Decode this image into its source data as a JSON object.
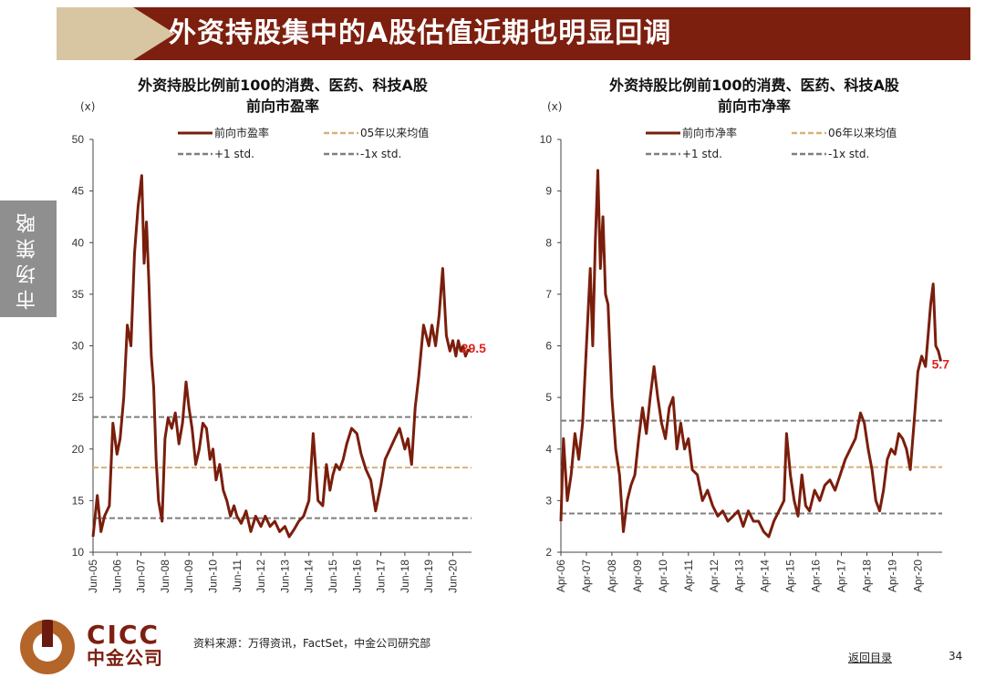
{
  "header": {
    "title": "外资持股集中的A股估值近期也明显回调"
  },
  "side_tab": {
    "label": "市场策略"
  },
  "footer": {
    "logo_en": "CICC",
    "logo_cn": "中金公司",
    "source": "资料来源：万得资讯，FactSet，中金公司研究部",
    "back_link": "返回目录",
    "page_number": "34"
  },
  "colors": {
    "banner": "#7d1f0f",
    "series": "#7a1e0c",
    "mean_line": "#d6b27a",
    "std_line": "#7f7f7f",
    "annotation": "#e0241b"
  },
  "chart_data": [
    {
      "type": "line",
      "title_line1": "外资持股比例前100的消费、医药、科技A股",
      "title_line2": "前向市盈率",
      "unit": "(x)",
      "ylim": [
        10,
        50
      ],
      "y_ticks": [
        "10",
        "15",
        "20",
        "25",
        "30",
        "35",
        "40",
        "45",
        "50"
      ],
      "x_ticks": [
        "Jun-05",
        "Jun-06",
        "Jun-07",
        "Jun-08",
        "Jun-09",
        "Jun-10",
        "Jun-11",
        "Jun-12",
        "Jun-13",
        "Jun-14",
        "Jun-15",
        "Jun-16",
        "Jun-17",
        "Jun-18",
        "Jun-19",
        "Jun-20"
      ],
      "x_range": [
        2005.42,
        2021.2
      ],
      "legend": [
        "前向市盈率",
        "05年以来均值",
        "+1 std.",
        "-1x std."
      ],
      "latest_label": "29.5",
      "latest_value": 29.5,
      "mean": 18.2,
      "plus_1_std": 23.1,
      "minus_1_std": 13.3,
      "series": [
        {
          "name": "前向市盈率",
          "x": [
            2005.42,
            2005.6,
            2005.75,
            2005.9,
            2006.1,
            2006.25,
            2006.42,
            2006.55,
            2006.7,
            2006.85,
            2007.0,
            2007.15,
            2007.3,
            2007.45,
            2007.55,
            2007.65,
            2007.75,
            2007.85,
            2007.95,
            2008.05,
            2008.15,
            2008.3,
            2008.42,
            2008.55,
            2008.7,
            2008.85,
            2009.0,
            2009.15,
            2009.3,
            2009.42,
            2009.55,
            2009.7,
            2009.85,
            2010.0,
            2010.15,
            2010.3,
            2010.42,
            2010.55,
            2010.7,
            2010.85,
            2011.0,
            2011.15,
            2011.3,
            2011.42,
            2011.6,
            2011.8,
            2012.0,
            2012.2,
            2012.42,
            2012.6,
            2012.8,
            2013.0,
            2013.2,
            2013.42,
            2013.6,
            2013.8,
            2014.0,
            2014.2,
            2014.42,
            2014.6,
            2014.8,
            2015.0,
            2015.15,
            2015.3,
            2015.42,
            2015.55,
            2015.7,
            2015.85,
            2016.0,
            2016.2,
            2016.42,
            2016.6,
            2016.8,
            2017.0,
            2017.2,
            2017.42,
            2017.6,
            2017.8,
            2018.0,
            2018.2,
            2018.42,
            2018.55,
            2018.7,
            2018.85,
            2019.0,
            2019.2,
            2019.42,
            2019.55,
            2019.7,
            2019.85,
            2020.0,
            2020.15,
            2020.3,
            2020.42,
            2020.55,
            2020.65,
            2020.75,
            2020.85,
            2020.95,
            2021.05,
            2021.15
          ],
          "values": [
            11.5,
            15.5,
            12.0,
            13.5,
            14.5,
            22.5,
            19.5,
            21.0,
            25.0,
            32.0,
            30.0,
            39.0,
            43.5,
            46.5,
            38.0,
            42.0,
            36.0,
            29.0,
            26.0,
            19.0,
            15.0,
            13.0,
            21.0,
            23.0,
            22.0,
            23.5,
            20.5,
            22.5,
            26.5,
            24.0,
            22.0,
            18.5,
            20.0,
            22.5,
            22.0,
            19.0,
            20.0,
            17.0,
            18.5,
            16.0,
            15.0,
            13.5,
            14.5,
            13.5,
            12.8,
            14.0,
            12.0,
            13.5,
            12.5,
            13.5,
            12.5,
            13.0,
            12.0,
            12.5,
            11.5,
            12.2,
            13.0,
            13.5,
            15.0,
            21.5,
            15.0,
            14.5,
            18.5,
            16.0,
            17.5,
            18.5,
            18.0,
            19.0,
            20.5,
            22.0,
            21.5,
            19.5,
            18.0,
            17.0,
            14.0,
            16.5,
            19.0,
            20.0,
            21.0,
            22.0,
            20.0,
            21.0,
            18.5,
            24.0,
            27.0,
            32.0,
            30.0,
            32.0,
            30.0,
            33.0,
            37.5,
            31.0,
            29.5,
            30.5,
            29.0,
            30.5,
            29.5,
            30.0,
            29.0,
            29.6,
            29.5
          ]
        }
      ]
    },
    {
      "type": "line",
      "title_line1": "外资持股比例前100的消费、医药、科技A股",
      "title_line2": "前向市净率",
      "unit": "(x)",
      "ylim": [
        2,
        10
      ],
      "y_ticks": [
        "2",
        "3",
        "4",
        "5",
        "6",
        "7",
        "8",
        "9",
        "10"
      ],
      "x_ticks": [
        "Apr-06",
        "Apr-07",
        "Apr-08",
        "Apr-09",
        "Apr-10",
        "Apr-11",
        "Apr-12",
        "Apr-13",
        "Apr-14",
        "Apr-15",
        "Apr-16",
        "Apr-17",
        "Apr-18",
        "Apr-19",
        "Apr-20"
      ],
      "x_range": [
        2006.25,
        2021.2
      ],
      "legend": [
        "前向市净率",
        "06年以来均值",
        "+1 std.",
        "-1x std."
      ],
      "latest_label": "5.7",
      "latest_value": 5.7,
      "mean": 3.65,
      "plus_1_std": 4.55,
      "minus_1_std": 2.75,
      "series": [
        {
          "name": "前向市净率",
          "x": [
            2006.25,
            2006.35,
            2006.5,
            2006.65,
            2006.8,
            2006.95,
            2007.1,
            2007.2,
            2007.3,
            2007.4,
            2007.5,
            2007.6,
            2007.7,
            2007.8,
            2007.9,
            2008.0,
            2008.1,
            2008.25,
            2008.4,
            2008.55,
            2008.7,
            2008.85,
            2009.0,
            2009.15,
            2009.3,
            2009.45,
            2009.6,
            2009.75,
            2009.9,
            2010.05,
            2010.2,
            2010.35,
            2010.5,
            2010.65,
            2010.8,
            2010.95,
            2011.1,
            2011.25,
            2011.4,
            2011.6,
            2011.8,
            2012.0,
            2012.2,
            2012.4,
            2012.6,
            2012.8,
            2013.0,
            2013.2,
            2013.4,
            2013.6,
            2013.8,
            2014.0,
            2014.2,
            2014.4,
            2014.6,
            2014.8,
            2015.0,
            2015.1,
            2015.25,
            2015.4,
            2015.55,
            2015.7,
            2015.85,
            2016.0,
            2016.2,
            2016.4,
            2016.6,
            2016.8,
            2017.0,
            2017.2,
            2017.4,
            2017.6,
            2017.8,
            2018.0,
            2018.15,
            2018.3,
            2018.45,
            2018.6,
            2018.75,
            2018.9,
            2019.05,
            2019.2,
            2019.35,
            2019.5,
            2019.65,
            2019.8,
            2019.95,
            2020.1,
            2020.25,
            2020.4,
            2020.55,
            2020.65,
            2020.75,
            2020.85,
            2020.95,
            2021.05,
            2021.15
          ],
          "values": [
            2.6,
            4.2,
            3.0,
            3.5,
            4.3,
            3.8,
            4.5,
            5.5,
            6.5,
            7.5,
            6.0,
            8.0,
            9.4,
            7.5,
            8.5,
            7.0,
            6.8,
            5.0,
            4.0,
            3.5,
            2.4,
            3.0,
            3.3,
            3.5,
            4.2,
            4.8,
            4.3,
            5.0,
            5.6,
            5.0,
            4.5,
            4.2,
            4.8,
            5.0,
            4.0,
            4.5,
            4.0,
            4.2,
            3.6,
            3.5,
            3.0,
            3.2,
            2.9,
            2.7,
            2.8,
            2.6,
            2.7,
            2.8,
            2.5,
            2.8,
            2.6,
            2.6,
            2.4,
            2.3,
            2.6,
            2.8,
            3.0,
            4.3,
            3.5,
            3.0,
            2.7,
            3.5,
            2.9,
            2.8,
            3.2,
            3.0,
            3.3,
            3.4,
            3.2,
            3.5,
            3.8,
            4.0,
            4.2,
            4.7,
            4.5,
            4.0,
            3.6,
            3.0,
            2.8,
            3.2,
            3.8,
            4.0,
            3.9,
            4.3,
            4.2,
            4.0,
            3.6,
            4.5,
            5.5,
            5.8,
            5.6,
            6.2,
            6.8,
            7.2,
            6.0,
            5.9,
            5.7
          ]
        }
      ]
    }
  ]
}
